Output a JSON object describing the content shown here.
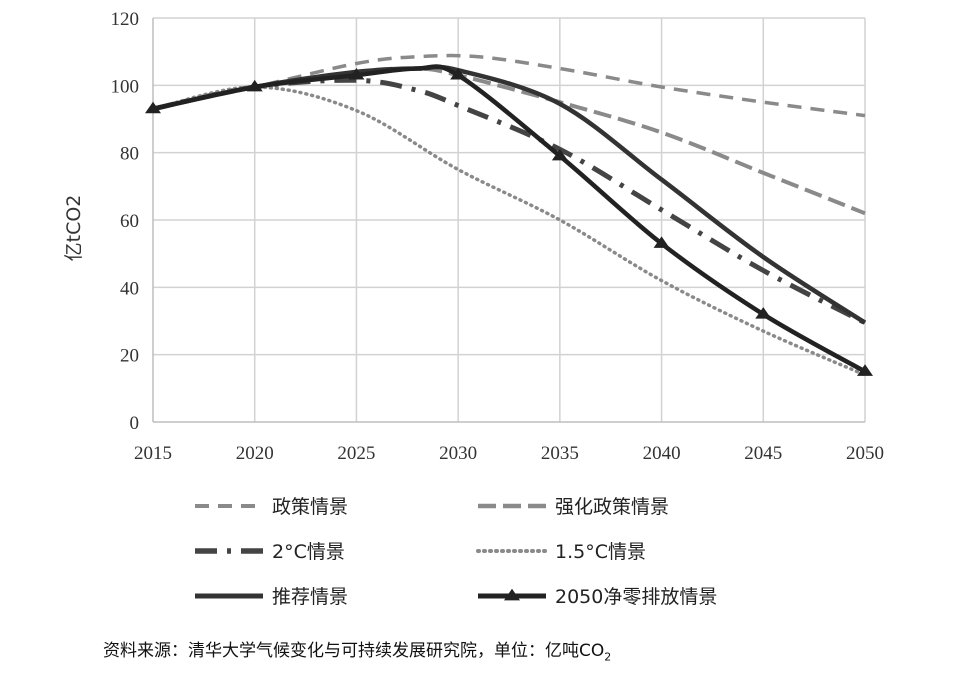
{
  "chart_data": {
    "type": "line",
    "title": "",
    "xlabel": "",
    "ylabel": "亿tCO2",
    "x": [
      2015,
      2020,
      2025,
      2030,
      2035,
      2040,
      2045,
      2050
    ],
    "xlim": [
      2015,
      2050
    ],
    "ylim": [
      0,
      120
    ],
    "yticks": [
      0,
      20,
      40,
      60,
      80,
      100,
      120
    ],
    "grid": true,
    "legend_position": "bottom",
    "series": [
      {
        "name": "政策情景",
        "style": "dash",
        "color": "#8a8a8a",
        "points": [
          [
            2015,
            93
          ],
          [
            2020,
            99.5
          ],
          [
            2025,
            106.5
          ],
          [
            2028,
            108.5
          ],
          [
            2031,
            108.5
          ],
          [
            2035,
            105
          ],
          [
            2040,
            99.5
          ],
          [
            2045,
            95
          ],
          [
            2050,
            91
          ]
        ]
      },
      {
        "name": "强化政策情景",
        "style": "longdash",
        "color": "#8a8a8a",
        "points": [
          [
            2015,
            93
          ],
          [
            2020,
            99.5
          ],
          [
            2025,
            104
          ],
          [
            2028,
            105
          ],
          [
            2030,
            103
          ],
          [
            2035,
            95
          ],
          [
            2040,
            86
          ],
          [
            2045,
            74
          ],
          [
            2050,
            62
          ]
        ]
      },
      {
        "name": "2°C情景",
        "style": "dashdot",
        "color": "#444444",
        "points": [
          [
            2015,
            93
          ],
          [
            2020,
            99.5
          ],
          [
            2025,
            101.5
          ],
          [
            2028,
            98.5
          ],
          [
            2030,
            94
          ],
          [
            2035,
            81
          ],
          [
            2040,
            63
          ],
          [
            2045,
            45
          ],
          [
            2050,
            29.5
          ]
        ]
      },
      {
        "name": "1.5°C情景",
        "style": "dot",
        "color": "#8a8a8a",
        "points": [
          [
            2015,
            93
          ],
          [
            2020,
            99.5
          ],
          [
            2025,
            92.5
          ],
          [
            2030,
            75
          ],
          [
            2035,
            60
          ],
          [
            2040,
            42
          ],
          [
            2045,
            27
          ],
          [
            2050,
            14
          ]
        ]
      },
      {
        "name": "推荐情景",
        "style": "solid",
        "color": "#333333",
        "points": [
          [
            2015,
            93
          ],
          [
            2020,
            99.5
          ],
          [
            2025,
            104
          ],
          [
            2028,
            105
          ],
          [
            2030,
            104.5
          ],
          [
            2035,
            94.5
          ],
          [
            2040,
            72
          ],
          [
            2045,
            49
          ],
          [
            2050,
            29.5
          ]
        ]
      },
      {
        "name": "2050净零排放情景",
        "style": "solid-triangle",
        "color": "#222222",
        "points": [
          [
            2015,
            93
          ],
          [
            2020,
            99.5
          ],
          [
            2025,
            103
          ],
          [
            2028,
            105
          ],
          [
            2030,
            103
          ],
          [
            2035,
            79
          ],
          [
            2040,
            53
          ],
          [
            2045,
            32
          ],
          [
            2050,
            15
          ]
        ],
        "markers": [
          [
            2015,
            93
          ],
          [
            2020,
            99.5
          ],
          [
            2025,
            103
          ],
          [
            2030,
            103
          ],
          [
            2035,
            79
          ],
          [
            2040,
            53
          ],
          [
            2045,
            32
          ],
          [
            2050,
            15
          ]
        ]
      }
    ]
  },
  "source_note": {
    "main": "资料来源：清华大学气候变化与可持续发展研究院，单位：亿吨CO",
    "subscript": "2"
  }
}
